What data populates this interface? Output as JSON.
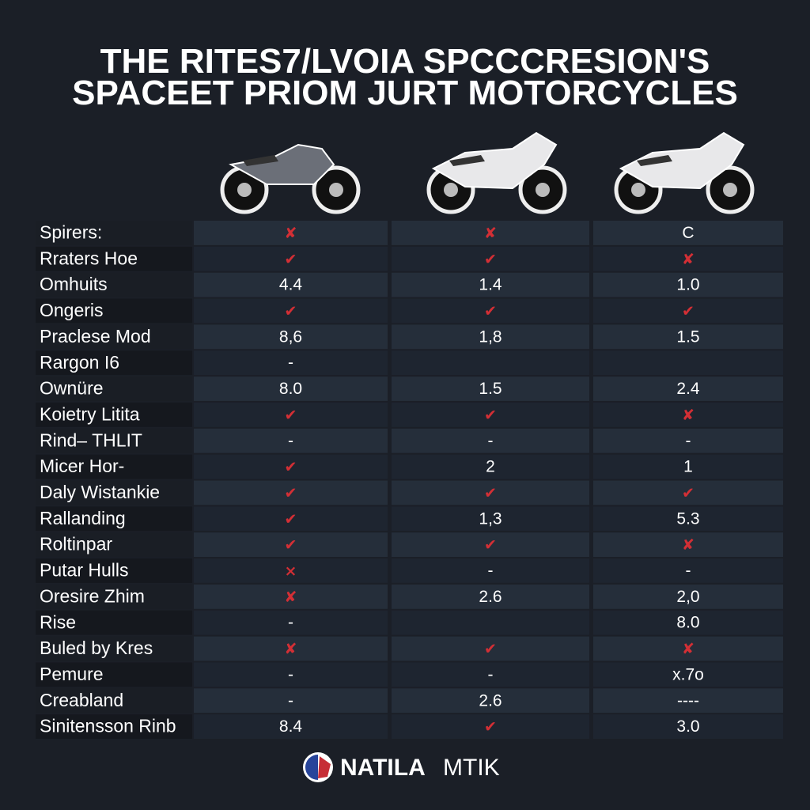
{
  "header": {
    "title_lines": [
      "THE RITES7/LVOIA SPCCCRESION'S",
      "SPACEET PRIOM JURT MOTORCYCLES"
    ]
  },
  "table": {
    "rows": [
      [
        "Spirers:",
        "✘",
        "✘",
        "C"
      ],
      [
        "Rraters Hoe",
        "✔",
        "✔",
        "✘"
      ],
      [
        "Omhuits",
        "4.4",
        "1.4",
        "1.0"
      ],
      [
        "Ongeris",
        "✔",
        "✔",
        "✔"
      ],
      [
        "Praclese Mod",
        "8,6",
        "1,8",
        "1.5"
      ],
      [
        "Rargon I6",
        "-",
        null,
        null
      ],
      [
        "Ownüre",
        "8.0",
        "1.5",
        "2.4"
      ],
      [
        "Koietry Litita",
        "✔",
        "✔",
        "✘"
      ],
      [
        "Rind– THLIT",
        "-",
        "-",
        "-"
      ],
      [
        "Micer Hor-",
        "✔",
        "2",
        "1"
      ],
      [
        "Daly Wistankie",
        "✔",
        "✔",
        "✔"
      ],
      [
        "Rallanding",
        "✔",
        "1,3",
        "5.3"
      ],
      [
        "Roltinpar",
        "✔",
        "✔",
        "✘"
      ],
      [
        "Putar Hulls",
        "×",
        "-",
        "-"
      ],
      [
        "Oresire Zhim",
        "✘",
        "2.6",
        "2,0"
      ],
      [
        "Rise",
        "-",
        null,
        "8.0"
      ],
      [
        "Buled by Kres",
        "✘",
        "✔",
        "✘"
      ],
      [
        "Pemure",
        "-",
        "-",
        "x.7o"
      ],
      [
        "Creabland",
        "-",
        "2.6",
        "----"
      ],
      [
        "Sinitensson Rinb",
        "8.4",
        "✔",
        "3.0"
      ]
    ]
  },
  "footer": {
    "brand_bold": "NATILA",
    "brand_light": "MTIK"
  }
}
